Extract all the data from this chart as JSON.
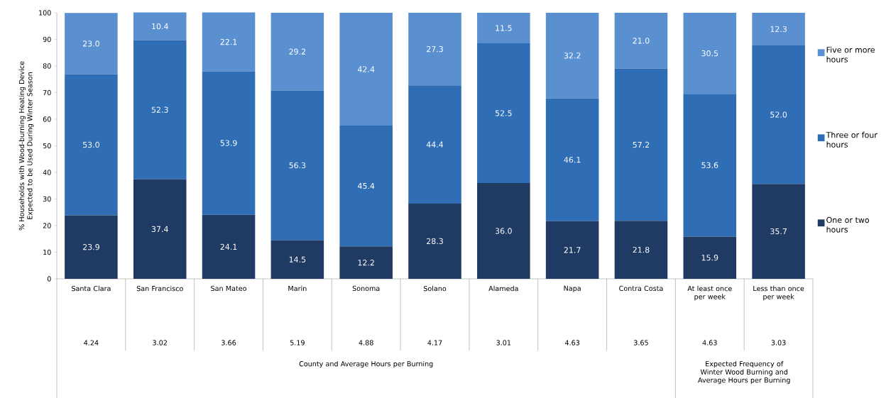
{
  "chart_data": {
    "type": "bar",
    "stacked": true,
    "ylabel": "% Households with Wood-burning Heating Device Expected to be Used During Winter Season",
    "categories": [
      "Santa Clara",
      "San Francisco",
      "San Mateo",
      "Marin",
      "Sonoma",
      "Solano",
      "Alameda",
      "Napa",
      "Contra Costa",
      "At least once per week",
      "Less than once per week"
    ],
    "series": [
      {
        "name": "One or two hours",
        "color": "#1f3a63",
        "values": [
          23.9,
          37.4,
          24.1,
          14.5,
          12.2,
          28.3,
          36.0,
          21.7,
          21.8,
          15.9,
          35.7
        ],
        "value_labels": [
          "23.9",
          "37.4",
          "24.1",
          "14.5",
          "12.2",
          "28.3",
          "36.0",
          "21.7",
          "21.8",
          "15.9",
          "35.7"
        ]
      },
      {
        "name": "Three or four hours",
        "color": "#2f6db5",
        "values": [
          53.0,
          52.3,
          53.9,
          56.3,
          45.4,
          44.4,
          52.5,
          46.1,
          57.2,
          53.6,
          52.0
        ],
        "value_labels": [
          "53.0",
          "52.3",
          "53.9",
          "56.3",
          "45.4",
          "44.4",
          "52.5",
          "46.1",
          "57.2",
          "53.6",
          "52.0"
        ]
      },
      {
        "name": "Five or more hours",
        "color": "#5b90d0",
        "values": [
          23.0,
          10.4,
          22.1,
          29.2,
          42.4,
          27.3,
          11.5,
          32.2,
          21.0,
          30.5,
          12.3
        ],
        "value_labels": [
          "23.0",
          "10.4",
          "22.1",
          "29.2",
          "42.4",
          "27.3",
          "11.5",
          "32.2",
          "21.0",
          "30.5",
          "12.3"
        ]
      }
    ],
    "annotations": [
      "4.24",
      "3.02",
      "3.66",
      "5.19",
      "4.88",
      "4.17",
      "3.01",
      "4.63",
      "3.65",
      "4.63",
      "3.03",
      "County and Average Hours per Burning",
      "Expected Frequency of Winter Wood Burning and Average Hours per Burning"
    ],
    "ylim": [
      0,
      100
    ],
    "yticks": [
      0,
      10,
      20,
      30,
      40,
      50,
      60,
      70,
      80,
      90,
      100
    ],
    "legend": "right",
    "grid": false
  }
}
